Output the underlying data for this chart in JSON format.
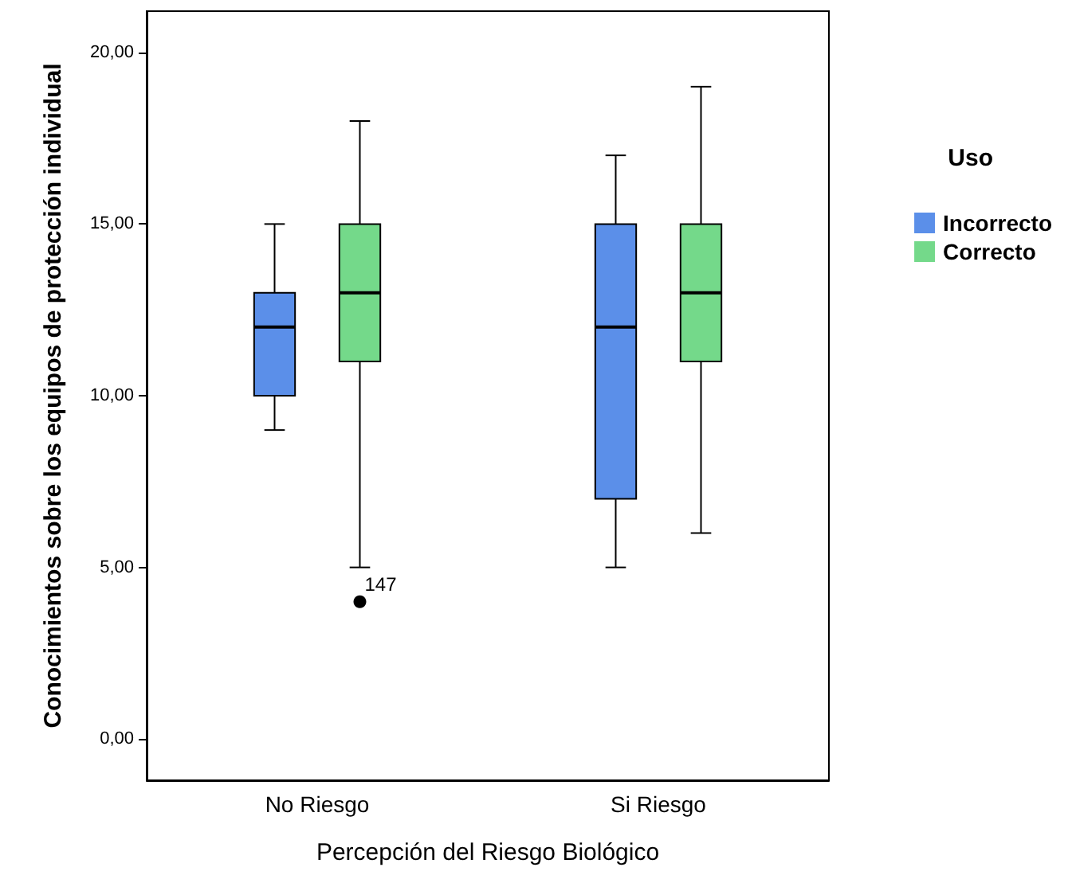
{
  "chart_data": {
    "type": "box",
    "xlabel": "Percepción del Riesgo Biológico",
    "ylabel": "Conocimientos sobre los equipos de protección individual",
    "legend_title": "Uso",
    "legend": "right",
    "categories": [
      "No Riesgo",
      "Si Riesgo"
    ],
    "ylim": [
      -1.2,
      21.2
    ],
    "yticks": [
      {
        "value": 0,
        "label": "0,00"
      },
      {
        "value": 5,
        "label": "5,00"
      },
      {
        "value": 10,
        "label": "10,00"
      },
      {
        "value": 15,
        "label": "15,00"
      },
      {
        "value": 20,
        "label": "20,00"
      }
    ],
    "series": [
      {
        "name": "Incorrecto",
        "color": "#5b8fe9",
        "boxes": [
          {
            "low": 9,
            "q1": 10,
            "median": 12,
            "q3": 13,
            "high": 15
          },
          {
            "low": 5,
            "q1": 7,
            "median": 12,
            "q3": 15,
            "high": 17
          }
        ]
      },
      {
        "name": "Correcto",
        "color": "#74d98a",
        "boxes": [
          {
            "low": 5,
            "q1": 11,
            "median": 13,
            "q3": 15,
            "high": 18,
            "outliers": [
              4
            ]
          },
          {
            "low": 6,
            "q1": 11,
            "median": 13,
            "q3": 15,
            "high": 19
          }
        ]
      }
    ],
    "annotations": [
      "147"
    ]
  }
}
